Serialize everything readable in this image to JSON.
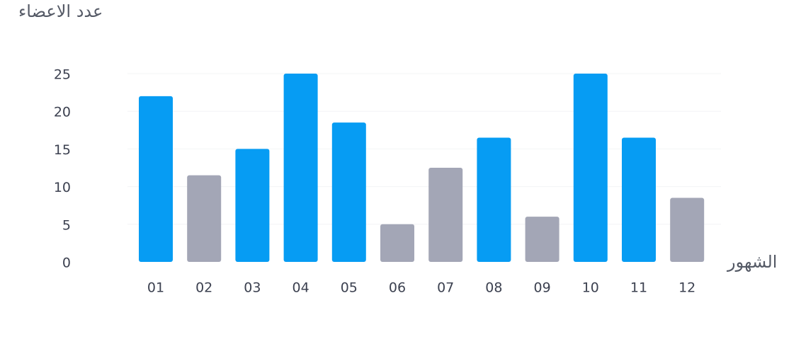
{
  "chart_data": {
    "type": "bar",
    "title": "",
    "ylabel": "عدد الاعضاء",
    "xlabel": "الشهور",
    "categories": [
      "01",
      "02",
      "03",
      "04",
      "05",
      "06",
      "07",
      "08",
      "09",
      "10",
      "11",
      "12"
    ],
    "values": [
      22,
      11.5,
      15,
      25,
      18.5,
      5,
      12.5,
      16.5,
      6,
      25,
      16.5,
      8.5
    ],
    "highlight": [
      true,
      false,
      true,
      true,
      true,
      false,
      false,
      true,
      false,
      true,
      true,
      false
    ],
    "ylim": [
      0,
      25
    ],
    "yticks": [
      0,
      5,
      10,
      15,
      20,
      25
    ],
    "grid": true,
    "legend": "none",
    "colors": {
      "highlight": "#069cf3",
      "muted": "#a3a6b6",
      "grid": "#f3f4f6",
      "tick_text": "#3c4150"
    }
  }
}
